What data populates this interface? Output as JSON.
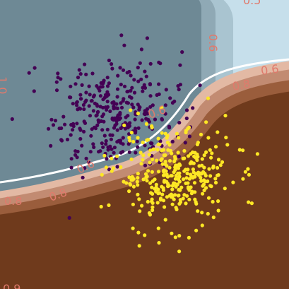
{
  "chart_data": {
    "type": "scatter",
    "title": "",
    "xlabel": "",
    "ylabel": "",
    "xlim": [
      0,
      1
    ],
    "ylim": [
      0,
      1
    ],
    "grid": false,
    "legend": "none",
    "colors": {
      "class_0_point": "#440154",
      "class_1_point": "#fde725",
      "region_0_deep": "#6e8995",
      "region_0_light": "#c4dfec",
      "boundary": "#ffffff",
      "region_1_light": "#c9967f",
      "region_1_deep": "#6f3a1c",
      "contour_label": "#e07a6c"
    },
    "contour_labels": [
      "0.5",
      "0.6",
      "1.0",
      "0.6",
      "0.8",
      "0.8",
      "0.8",
      "0.6",
      "0.6",
      "0.9"
    ],
    "series": [
      {
        "class": 0,
        "distribution": {
          "center": [
            0.4,
            0.6
          ],
          "spread": [
            0.11,
            0.09
          ],
          "count": 320
        },
        "values": [
          [
            0.42,
            0.878
          ],
          [
            0.43,
            0.843
          ],
          [
            0.49,
            0.829
          ],
          [
            0.63,
            0.82
          ],
          [
            0.2,
            0.746
          ],
          [
            0.12,
            0.765
          ],
          [
            0.24,
            0.246
          ]
        ]
      },
      {
        "class": 1,
        "distribution": {
          "center": [
            0.6,
            0.39
          ],
          "spread": [
            0.1,
            0.08
          ],
          "count": 320
        },
        "values": [
          [
            0.72,
            0.66
          ],
          [
            0.78,
            0.6
          ],
          [
            0.84,
            0.48
          ],
          [
            0.46,
            0.21
          ],
          [
            0.55,
            0.16
          ],
          [
            0.62,
            0.13
          ],
          [
            0.7,
            0.22
          ]
        ]
      }
    ]
  }
}
